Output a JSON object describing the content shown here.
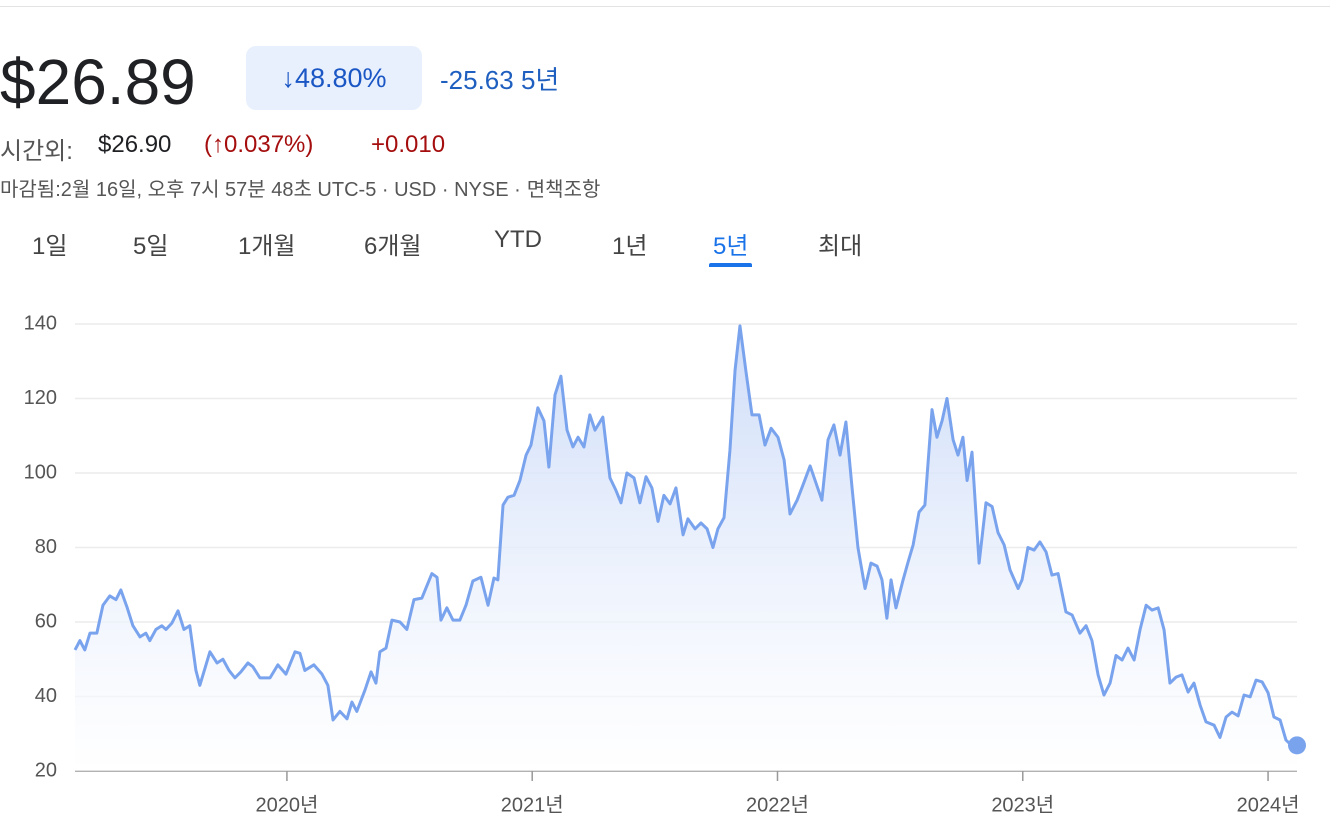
{
  "header": {
    "price": "$26.89",
    "change_pct": "↓48.80%",
    "change": "-25.63",
    "period": "5년",
    "after_hours_label": "시간외:",
    "after_hours_price": "$26.90",
    "after_hours_change_pct": "(↑0.037%)",
    "after_hours_change": "+0.010",
    "status": "마감됨:2월 16일, 오후 7시 57분 48초 UTC-5 · USD · NYSE ·",
    "disclaimer": "면책조항"
  },
  "tabs": {
    "items": [
      "1일",
      "5일",
      "1개월",
      "6개월",
      "YTD",
      "1년",
      "5년",
      "최대"
    ],
    "selected": 6
  },
  "chart_data": {
    "type": "line",
    "color": "#7aa3ee",
    "grid": true,
    "xlim": [
      2019.136,
      2024.118
    ],
    "xticks": [
      {
        "value": 2020,
        "label": "2020년"
      },
      {
        "value": 2021,
        "label": "2021년"
      },
      {
        "value": 2022,
        "label": "2022년"
      },
      {
        "value": 2023,
        "label": "2023년"
      },
      {
        "value": 2024,
        "label": "2024년"
      }
    ],
    "ylim": [
      20,
      140
    ],
    "yticks": [
      20,
      40,
      60,
      80,
      100,
      120,
      140
    ],
    "x": [
      2019.136,
      2019.156,
      2019.176,
      2019.197,
      2019.225,
      2019.25,
      2019.278,
      2019.303,
      2019.323,
      2019.348,
      2019.372,
      2019.401,
      2019.425,
      2019.441,
      2019.466,
      2019.49,
      2019.507,
      2019.531,
      2019.556,
      2019.58,
      2019.604,
      2019.629,
      2019.645,
      2019.686,
      2019.715,
      2019.739,
      2019.764,
      2019.788,
      2019.812,
      2019.841,
      2019.861,
      2019.89,
      2019.931,
      2019.963,
      2019.996,
      2020.033,
      2020.053,
      2020.073,
      2020.11,
      2020.143,
      2020.167,
      2020.188,
      2020.216,
      2020.245,
      2020.265,
      2020.285,
      2020.318,
      2020.343,
      2020.363,
      2020.379,
      2020.404,
      2020.428,
      2020.461,
      2020.489,
      2020.518,
      2020.55,
      2020.591,
      2020.612,
      2020.628,
      2020.652,
      2020.677,
      2020.705,
      2020.73,
      2020.758,
      2020.791,
      2020.82,
      2020.844,
      2020.86,
      2020.881,
      2020.901,
      2020.926,
      2020.95,
      2020.975,
      2020.995,
      2021.023,
      2021.048,
      2021.068,
      2021.093,
      2021.117,
      2021.142,
      2021.166,
      2021.187,
      2021.211,
      2021.235,
      2021.256,
      2021.288,
      2021.317,
      2021.341,
      2021.362,
      2021.386,
      2021.415,
      2021.439,
      2021.464,
      2021.488,
      2021.513,
      2021.537,
      2021.562,
      2021.586,
      2021.615,
      2021.635,
      2021.664,
      2021.688,
      2021.713,
      2021.737,
      2021.757,
      2021.782,
      2021.806,
      2021.827,
      2021.847,
      2021.872,
      2021.896,
      2021.925,
      2021.949,
      2021.974,
      2022.002,
      2022.027,
      2022.051,
      2022.08,
      2022.104,
      2022.133,
      2022.157,
      2022.181,
      2022.206,
      2022.23,
      2022.255,
      2022.279,
      2022.304,
      2022.328,
      2022.357,
      2022.381,
      2022.406,
      2022.426,
      2022.446,
      2022.463,
      2022.483,
      2022.512,
      2022.532,
      2022.553,
      2022.577,
      2022.601,
      2022.63,
      2022.65,
      2022.671,
      2022.691,
      2022.716,
      2022.736,
      2022.756,
      2022.773,
      2022.793,
      2022.822,
      2022.85,
      2022.875,
      2022.899,
      2022.924,
      2022.948,
      2022.981,
      2022.997,
      2023.021,
      2023.046,
      2023.07,
      2023.095,
      2023.119,
      2023.144,
      2023.176,
      2023.201,
      2023.233,
      2023.258,
      2023.282,
      2023.307,
      2023.331,
      2023.356,
      2023.38,
      2023.405,
      2023.429,
      2023.454,
      2023.478,
      2023.503,
      2023.527,
      2023.552,
      2023.576,
      2023.6,
      2023.625,
      2023.649,
      2023.674,
      2023.698,
      2023.723,
      2023.747,
      2023.78,
      2023.804,
      2023.829,
      2023.853,
      2023.878,
      2023.902,
      2023.927,
      2023.951,
      2023.976,
      2024,
      2024.024,
      2024.049,
      2024.073,
      2024.094,
      2024.118
    ],
    "values": [
      52.5,
      55,
      52.5,
      57,
      57,
      64.5,
      67,
      66,
      68.6,
      64,
      59,
      56,
      57,
      55,
      58,
      59,
      58,
      59.7,
      63,
      58,
      59,
      47,
      43,
      52,
      49,
      50,
      47,
      45,
      46.6,
      49,
      48,
      45,
      45,
      48.5,
      46,
      52,
      51.6,
      47,
      48.5,
      46,
      43,
      33.7,
      36,
      34,
      38.5,
      36,
      41.7,
      46.6,
      43.6,
      52,
      53,
      60.5,
      60,
      58,
      66,
      66.4,
      73,
      72,
      60.5,
      63.8,
      60.5,
      60.5,
      64.5,
      71,
      72,
      64.5,
      71.8,
      71.3,
      91.4,
      93.5,
      94,
      98,
      104.8,
      107.5,
      117.5,
      114,
      101.6,
      121,
      126,
      111.5,
      107,
      109.6,
      107,
      115.6,
      111.5,
      115,
      98.7,
      95.4,
      92,
      100,
      98.7,
      92,
      99,
      96,
      87,
      94,
      91.7,
      96,
      83.4,
      87.7,
      85,
      86.6,
      85,
      80,
      85,
      88,
      106,
      127.6,
      139.5,
      127,
      115.6,
      115.6,
      107.5,
      112,
      109.6,
      103.5,
      89,
      92.7,
      96.8,
      101.9,
      97.3,
      92.7,
      108.9,
      112.9,
      104.8,
      113.7,
      96,
      80,
      69,
      75.8,
      75,
      71.3,
      61,
      71.3,
      63.8,
      71.3,
      76,
      80.7,
      89.5,
      91.4,
      117,
      109.6,
      114,
      120,
      108.9,
      104.8,
      109.6,
      98,
      105.6,
      75.8,
      92,
      91,
      84,
      80.7,
      74,
      69,
      71.3,
      80,
      79.3,
      81.5,
      78.8,
      72.6,
      73,
      62.7,
      61.9,
      57,
      59,
      55,
      45.8,
      40.4,
      43.6,
      51,
      49.8,
      53,
      49.8,
      57.9,
      64.5,
      63.2,
      63.8,
      57.9,
      43.6,
      45.2,
      45.8,
      41.2,
      43.6,
      37.7,
      33.2,
      32.3,
      29,
      34.5,
      35.8,
      34.8,
      40.4,
      39.9,
      44.4,
      43.9,
      41,
      34.5,
      33.7,
      28.3,
      27,
      26.89
    ]
  }
}
